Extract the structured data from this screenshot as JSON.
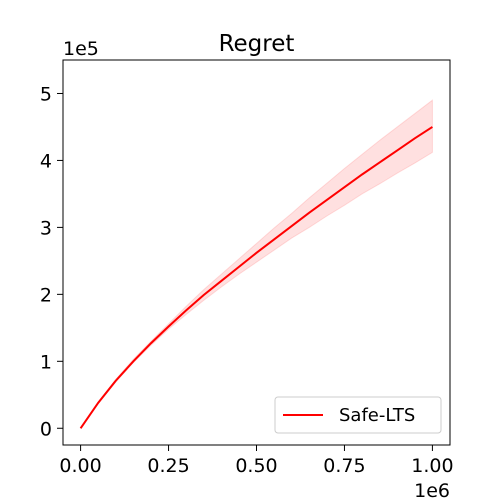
{
  "chart_data": {
    "type": "line",
    "title": "Regret",
    "xlabel": "",
    "ylabel": "",
    "x_offset_label": "1e6",
    "y_offset_label": "1e5",
    "xlim": [
      -0.05,
      1.05
    ],
    "ylim": [
      -0.25,
      5.5
    ],
    "x_ticks": [
      0.0,
      0.25,
      0.5,
      0.75,
      1.0
    ],
    "x_tick_labels": [
      "0.00",
      "0.25",
      "0.50",
      "0.75",
      "1.00"
    ],
    "y_ticks": [
      0,
      1,
      2,
      3,
      4,
      5
    ],
    "y_tick_labels": [
      "0",
      "1",
      "2",
      "3",
      "4",
      "5"
    ],
    "grid": false,
    "legend_position": "lower-right",
    "series": [
      {
        "name": "Safe-LTS",
        "color": "#ff0000",
        "band_color": "#ff0000",
        "x": [
          0.0,
          0.05,
          0.1,
          0.15,
          0.2,
          0.25,
          0.3,
          0.35,
          0.4,
          0.45,
          0.5,
          0.55,
          0.6,
          0.65,
          0.7,
          0.75,
          0.8,
          0.85,
          0.9,
          0.95,
          1.0
        ],
        "y": [
          0.0,
          0.38,
          0.71,
          1.0,
          1.27,
          1.52,
          1.76,
          1.99,
          2.2,
          2.41,
          2.62,
          2.82,
          3.02,
          3.22,
          3.41,
          3.6,
          3.79,
          3.97,
          4.15,
          4.33,
          4.5
        ],
        "lower": [
          0.0,
          0.37,
          0.69,
          0.98,
          1.24,
          1.48,
          1.7,
          1.91,
          2.11,
          2.3,
          2.48,
          2.66,
          2.84,
          3.0,
          3.17,
          3.33,
          3.5,
          3.65,
          3.81,
          3.96,
          4.12
        ],
        "upper": [
          0.0,
          0.39,
          0.73,
          1.03,
          1.3,
          1.56,
          1.82,
          2.07,
          2.3,
          2.53,
          2.76,
          2.99,
          3.21,
          3.44,
          3.66,
          3.88,
          4.09,
          4.3,
          4.5,
          4.7,
          4.9
        ]
      }
    ]
  }
}
